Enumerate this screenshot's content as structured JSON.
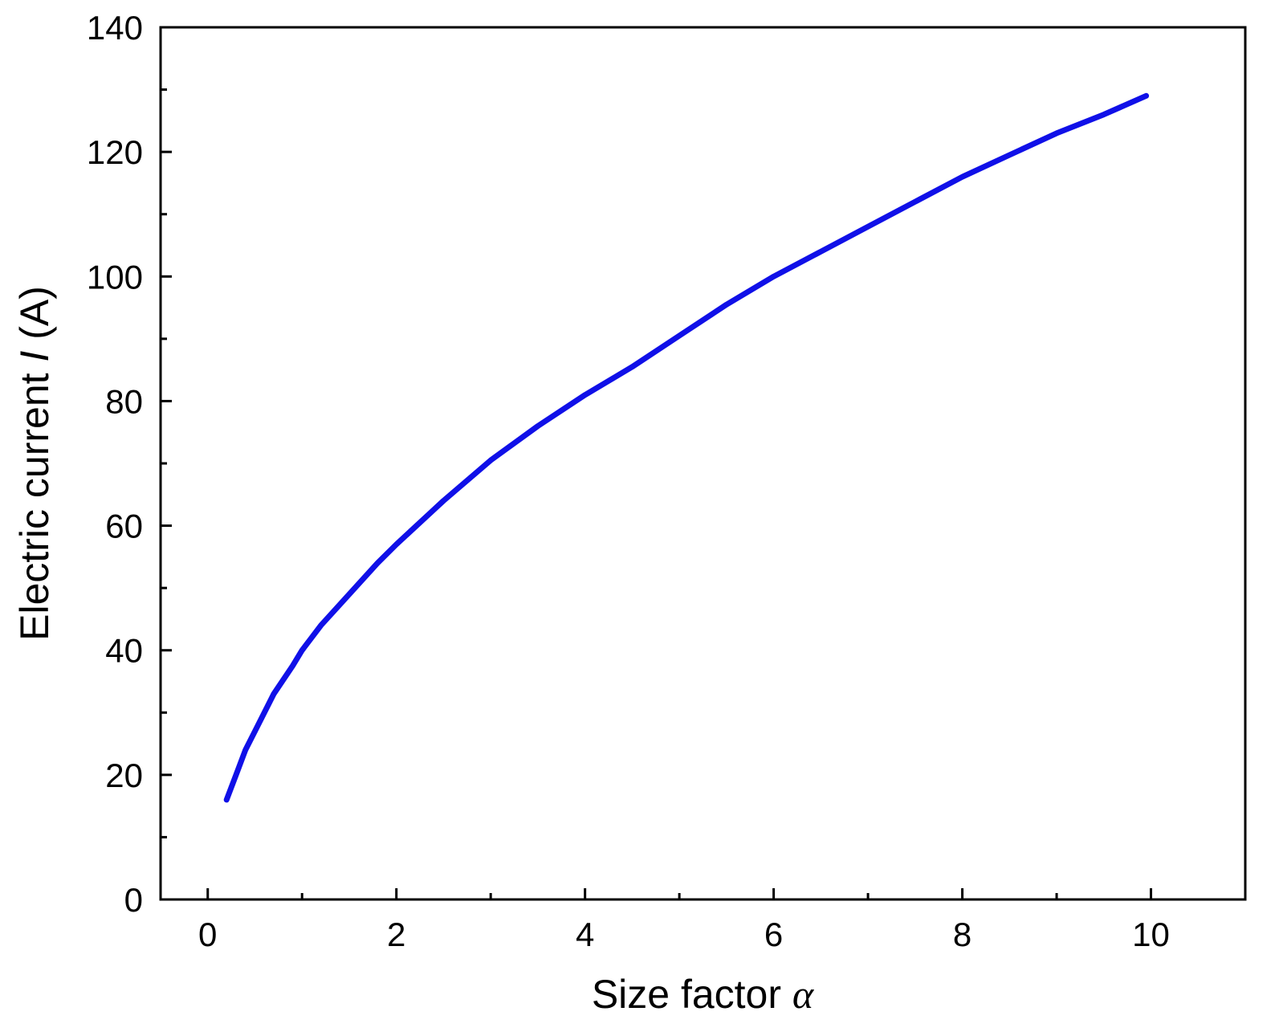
{
  "chart_data": {
    "type": "line",
    "xlabel_text": "Size factor ",
    "xlabel_symbol": "α",
    "ylabel_prefix": "Electric current ",
    "ylabel_symbol": "I",
    "ylabel_suffix": " (A)",
    "xlim": [
      -0.5,
      11
    ],
    "ylim": [
      0,
      140
    ],
    "x_ticks": [
      0,
      2,
      4,
      6,
      8,
      10
    ],
    "x_tick_labels": [
      "0",
      "2",
      "4",
      "6",
      "8",
      "10"
    ],
    "x_minor_ticks": [
      1,
      3,
      5,
      7,
      9
    ],
    "y_ticks": [
      0,
      20,
      40,
      60,
      80,
      100,
      120,
      140
    ],
    "y_tick_labels": [
      "0",
      "20",
      "40",
      "60",
      "80",
      "100",
      "120",
      "140"
    ],
    "y_minor_ticks": [
      10,
      30,
      50,
      70,
      90,
      110,
      130
    ],
    "grid": false,
    "series": [
      {
        "color": "#1010e8",
        "x": [
          0.2,
          0.3,
          0.4,
          0.5,
          0.7,
          0.9,
          1.0,
          1.2,
          1.5,
          1.8,
          2.0,
          2.5,
          3.0,
          3.5,
          4.0,
          4.5,
          5.0,
          5.5,
          6.0,
          6.5,
          7.0,
          7.5,
          8.0,
          8.5,
          9.0,
          9.5,
          9.95
        ],
        "y": [
          16,
          20,
          24,
          27,
          33,
          37.5,
          40,
          44,
          49,
          54,
          57,
          64,
          70.5,
          76,
          81,
          85.5,
          90.5,
          95.5,
          100,
          104,
          108,
          112,
          116,
          119.5,
          123,
          126,
          129
        ]
      }
    ]
  }
}
